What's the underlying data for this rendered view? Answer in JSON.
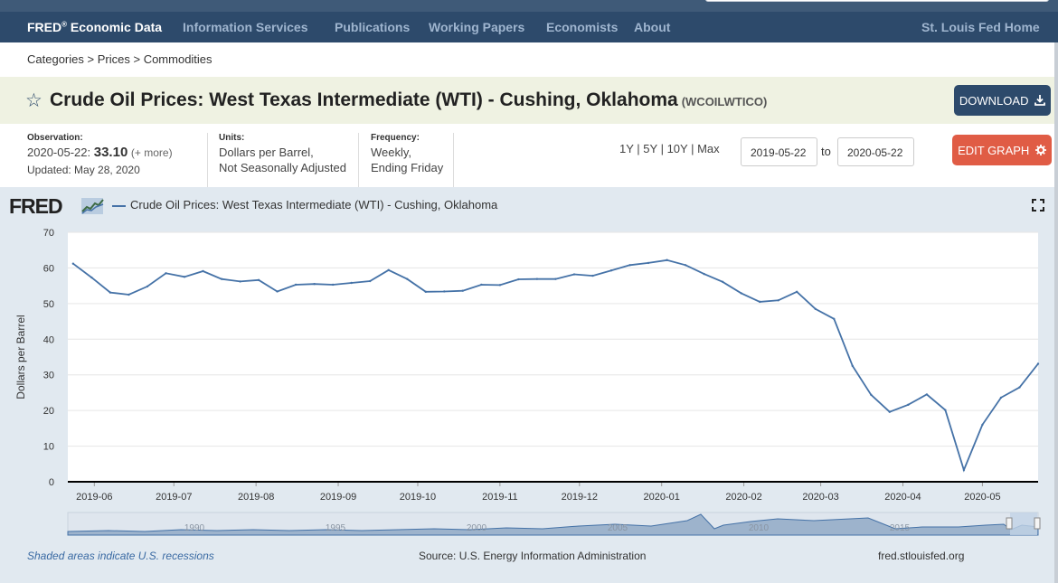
{
  "nav": {
    "brand": "FRED",
    "brand_mark": "®",
    "brand_suffix": " Economic Data",
    "items": [
      "Information Services",
      "Publications",
      "Working Papers",
      "Economists",
      "About"
    ],
    "right": "St. Louis Fed Home"
  },
  "breadcrumb": [
    "Categories",
    "Prices",
    "Commodities"
  ],
  "series": {
    "title": "Crude Oil Prices: West Texas Intermediate (WTI) - Cushing, Oklahoma",
    "id": "(WCOILWTICO)",
    "download_label": "DOWNLOAD"
  },
  "meta": {
    "observation_label": "Observation:",
    "observation_date": "2020-05-22:",
    "observation_value": "33.10",
    "observation_more": "(+ more)",
    "updated": "Updated: May 28, 2020",
    "units_label": "Units:",
    "units_line1": "Dollars per Barrel,",
    "units_line2": "Not Seasonally Adjusted",
    "frequency_label": "Frequency:",
    "frequency_line1": "Weekly,",
    "frequency_line2": "Ending Friday"
  },
  "controls": {
    "ranges": [
      "1Y",
      "5Y",
      "10Y",
      "Max"
    ],
    "start_date": "2019-05-22",
    "to_label": "to",
    "end_date": "2020-05-22",
    "edit_label": "EDIT GRAPH"
  },
  "footer": {
    "recessions": "Shaded areas indicate U.S. recessions",
    "source": "Source: U.S. Energy Information Administration",
    "site": "fred.stlouisfed.org"
  },
  "colors": {
    "line": "#4572a7",
    "nav_bg": "#2d4a6b",
    "edit_button": "#e05c45"
  },
  "chart_data": {
    "type": "line",
    "logo_text": "FRED",
    "legend": "Crude Oil Prices: West Texas Intermediate (WTI) - Cushing, Oklahoma",
    "ylabel": "Dollars per Barrel",
    "ylim": [
      0,
      70
    ],
    "yticks": [
      0,
      10,
      20,
      30,
      40,
      50,
      60,
      70
    ],
    "x_tick_labels": [
      "2019-06",
      "2019-07",
      "2019-08",
      "2019-09",
      "2019-10",
      "2019-11",
      "2019-12",
      "2020-01",
      "2020-02",
      "2020-03",
      "2020-04",
      "2020-05"
    ],
    "grid": true,
    "navigator_labels": [
      "1990",
      "1995",
      "2000",
      "2005",
      "2010",
      "2015"
    ],
    "series": [
      {
        "name": "Crude Oil Prices: West Texas Intermediate (WTI) - Cushing, Oklahoma",
        "x": [
          "2019-05-24",
          "2019-05-31",
          "2019-06-07",
          "2019-06-14",
          "2019-06-21",
          "2019-06-28",
          "2019-07-05",
          "2019-07-12",
          "2019-07-19",
          "2019-07-26",
          "2019-08-02",
          "2019-08-09",
          "2019-08-16",
          "2019-08-23",
          "2019-08-30",
          "2019-09-06",
          "2019-09-13",
          "2019-09-20",
          "2019-09-27",
          "2019-10-04",
          "2019-10-11",
          "2019-10-18",
          "2019-10-25",
          "2019-11-01",
          "2019-11-08",
          "2019-11-15",
          "2019-11-22",
          "2019-11-29",
          "2019-12-06",
          "2019-12-13",
          "2019-12-20",
          "2019-12-27",
          "2020-01-03",
          "2020-01-10",
          "2020-01-17",
          "2020-01-24",
          "2020-01-31",
          "2020-02-07",
          "2020-02-14",
          "2020-02-21",
          "2020-02-28",
          "2020-03-06",
          "2020-03-13",
          "2020-03-20",
          "2020-03-27",
          "2020-04-03",
          "2020-04-10",
          "2020-04-17",
          "2020-04-24",
          "2020-05-01",
          "2020-05-08",
          "2020-05-15",
          "2020-05-22"
        ],
        "values": [
          61.2,
          57.3,
          53.1,
          52.5,
          54.8,
          58.5,
          57.5,
          59.1,
          56.9,
          56.2,
          56.6,
          53.4,
          55.3,
          55.5,
          55.3,
          55.8,
          56.3,
          59.4,
          56.9,
          53.3,
          53.4,
          53.6,
          55.3,
          55.2,
          56.8,
          56.9,
          56.9,
          58.2,
          57.8,
          59.3,
          60.8,
          61.4,
          62.2,
          60.8,
          58.3,
          56.1,
          52.9,
          50.5,
          50.9,
          53.3,
          48.5,
          45.7,
          32.5,
          24.4,
          19.6,
          21.6,
          24.5,
          20.1,
          3.3,
          16.0,
          23.6,
          26.5,
          33.1
        ]
      }
    ]
  }
}
